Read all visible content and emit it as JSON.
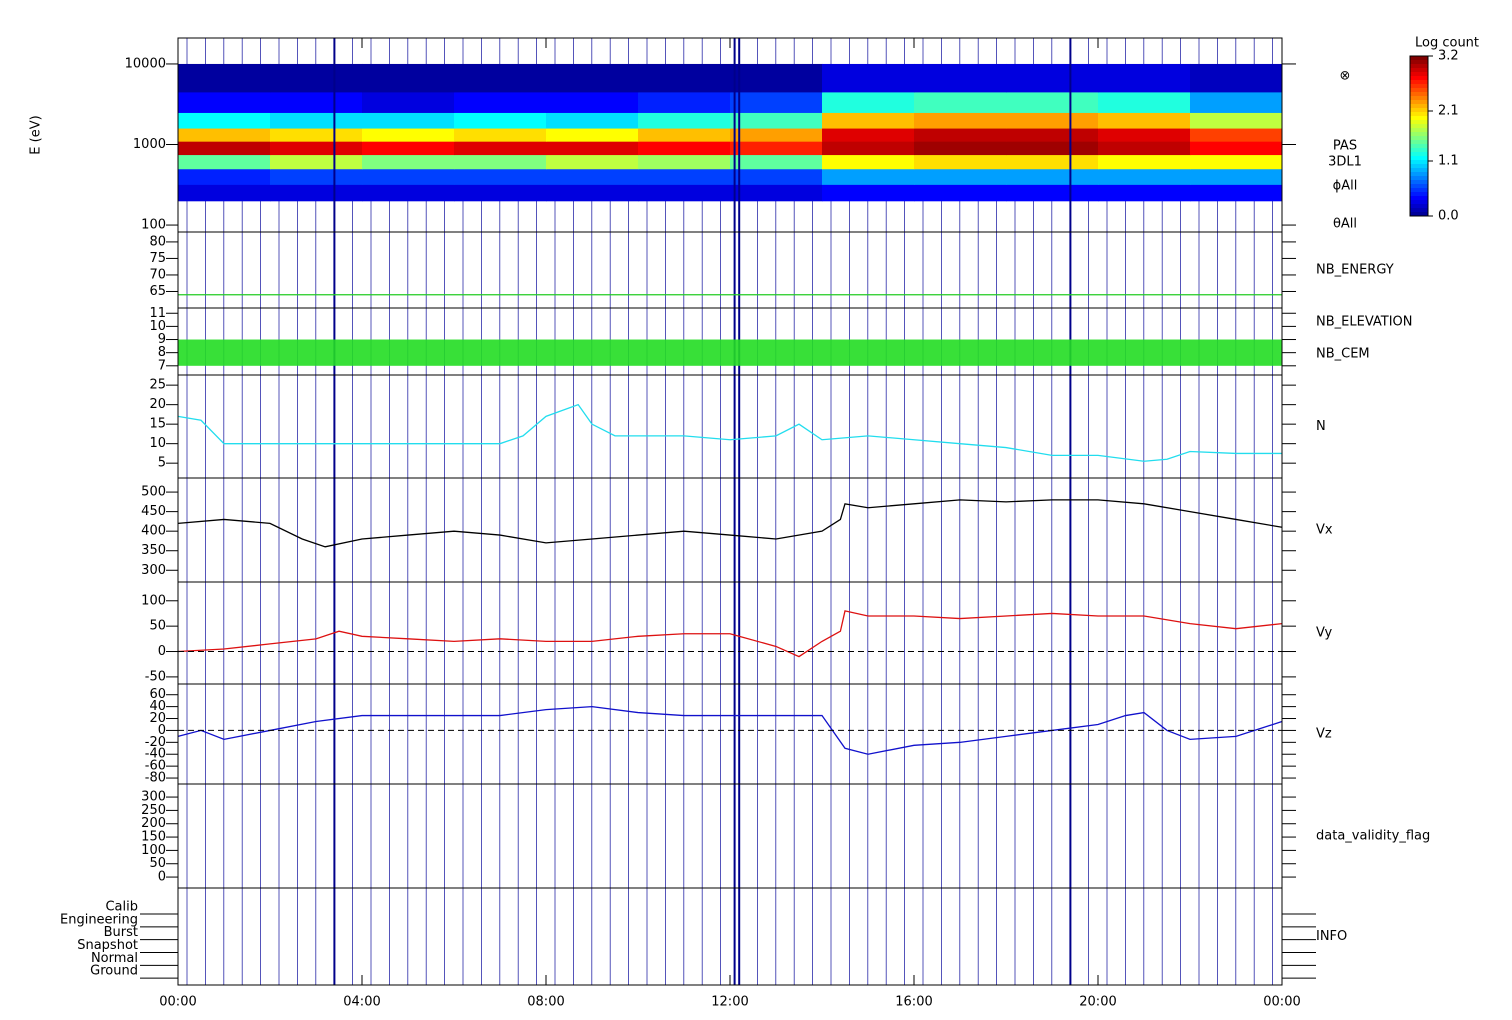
{
  "chart_data": [
    {
      "type": "heatmap",
      "ylabel": "E (eV)",
      "log": true,
      "ylim": [
        82,
        21000
      ],
      "yticks": [
        100,
        1000,
        10000
      ],
      "x_bins": [
        0,
        2,
        4,
        6,
        8,
        10,
        12,
        14,
        16,
        18,
        20,
        22,
        24
      ],
      "y_bins": [
        200,
        320,
        500,
        750,
        1100,
        1600,
        2500,
        4500,
        10000
      ],
      "values": [
        [
          0.3,
          0.3,
          0.3,
          0.3,
          0.3,
          0.3,
          0.3,
          0.4,
          0.4,
          0.4,
          0.4,
          0.4
        ],
        [
          0.5,
          0.6,
          0.6,
          0.6,
          0.6,
          0.6,
          0.6,
          0.9,
          0.9,
          0.9,
          0.9,
          0.9
        ],
        [
          1.5,
          1.8,
          1.6,
          1.6,
          1.8,
          1.7,
          1.5,
          2.0,
          2.1,
          2.1,
          2.0,
          2.0
        ],
        [
          3.0,
          2.9,
          2.8,
          2.9,
          2.9,
          2.8,
          2.7,
          3.0,
          3.1,
          3.1,
          3.0,
          2.8
        ],
        [
          2.2,
          2.1,
          2.0,
          2.1,
          2.0,
          2.2,
          2.3,
          2.9,
          3.0,
          3.0,
          2.9,
          2.6
        ],
        [
          1.2,
          1.1,
          1.1,
          1.2,
          1.1,
          1.3,
          1.4,
          2.2,
          2.3,
          2.3,
          2.2,
          1.8
        ],
        [
          0.4,
          0.4,
          0.3,
          0.4,
          0.4,
          0.5,
          0.6,
          1.3,
          1.4,
          1.4,
          1.3,
          0.9
        ],
        [
          0.1,
          0.1,
          0.1,
          0.1,
          0.1,
          0.1,
          0.1,
          0.3,
          0.3,
          0.3,
          0.3,
          0.2
        ]
      ],
      "colorbar": {
        "title": "Log count",
        "lim": [
          0,
          3.2
        ],
        "ticks": [
          {
            "value": 0,
            "label": "0.0"
          },
          1.1,
          2.1,
          3.2
        ]
      },
      "symbol": "⊗",
      "labels": [
        "PAS",
        "3DL1",
        "ϕAll",
        "θAll"
      ],
      "markers": [
        3.4,
        12.1,
        12.2,
        19.4
      ],
      "marker_color": "#00008b"
    },
    {
      "type": "line",
      "ylim": [
        60,
        83
      ],
      "yticks": [
        65,
        70,
        75,
        80
      ],
      "series": [
        {
          "name": "NB_ENERGY",
          "color": "#22cc22",
          "x": [
            0,
            24
          ],
          "values": [
            64,
            64
          ]
        }
      ]
    },
    {
      "type": "band",
      "ylim": [
        6.3,
        11.4
      ],
      "yticks": [
        7,
        8,
        9,
        10,
        11
      ],
      "series": [
        {
          "name": "NB_ELEVATION",
          "color": "#22dd22",
          "range": [
            7,
            9
          ]
        },
        {
          "name": "NB_CEM",
          "color": "#1a1aaa"
        }
      ]
    },
    {
      "type": "line",
      "ylim": [
        1.2,
        27.6
      ],
      "yticks": [
        5,
        10,
        15,
        20,
        25
      ],
      "series": [
        {
          "name": "N",
          "color": "#22ddee",
          "x": [
            0,
            0.5,
            1,
            2,
            3,
            4,
            5,
            6,
            7,
            7.5,
            8,
            8.7,
            9,
            9.5,
            10,
            11,
            12,
            13,
            13.5,
            14,
            15,
            16,
            17,
            18,
            19,
            20,
            21,
            21.5,
            22,
            23,
            24
          ],
          "values": [
            17,
            16,
            10,
            10,
            10,
            10,
            10,
            10,
            10,
            12,
            17,
            20,
            15,
            12,
            12,
            12,
            11,
            12,
            15,
            11,
            12,
            11,
            10,
            9,
            7,
            7,
            5.5,
            6,
            8,
            7.5,
            7.5
          ]
        }
      ]
    },
    {
      "type": "line",
      "ylim": [
        270,
        536
      ],
      "yticks": [
        300,
        350,
        400,
        450,
        500
      ],
      "series": [
        {
          "name": "Vx",
          "color": "#000000",
          "x": [
            0,
            1,
            2,
            2.7,
            3.2,
            4,
            5,
            6,
            7,
            8,
            9,
            10,
            11,
            12,
            13,
            14,
            14.4,
            14.5,
            15,
            16,
            17,
            18,
            19,
            20,
            21,
            22,
            23,
            24
          ],
          "values": [
            420,
            430,
            420,
            380,
            360,
            380,
            390,
            400,
            390,
            370,
            380,
            390,
            400,
            390,
            380,
            400,
            430,
            470,
            460,
            470,
            480,
            475,
            480,
            480,
            470,
            450,
            430,
            410
          ]
        }
      ]
    },
    {
      "type": "line",
      "ylim": [
        -64,
        137
      ],
      "yticks": [
        -50,
        0,
        50,
        100
      ],
      "dashed_line": 0,
      "series": [
        {
          "name": "Vy",
          "color": "#dd1111",
          "x": [
            0,
            1,
            2,
            3,
            3.5,
            4,
            5,
            6,
            7,
            8,
            9,
            10,
            11,
            12,
            13,
            13.5,
            14,
            14.4,
            14.5,
            15,
            16,
            17,
            18,
            19,
            20,
            21,
            22,
            23,
            24
          ],
          "values": [
            0,
            5,
            15,
            25,
            40,
            30,
            25,
            20,
            25,
            20,
            20,
            30,
            35,
            35,
            10,
            -10,
            20,
            40,
            80,
            70,
            70,
            65,
            70,
            75,
            70,
            70,
            55,
            45,
            55
          ]
        }
      ]
    },
    {
      "type": "line",
      "ylim": [
        -90,
        78
      ],
      "yticks": [
        -80,
        -60,
        -40,
        -20,
        0,
        20,
        40,
        60
      ],
      "dashed_line": 0,
      "series": [
        {
          "name": "Vz",
          "color": "#1111cc",
          "x": [
            0,
            0.5,
            1,
            2,
            3,
            4,
            5,
            6,
            7,
            8,
            9,
            10,
            11,
            12,
            13,
            14,
            14.5,
            15,
            16,
            17,
            18,
            19,
            20,
            20.6,
            21,
            21.5,
            22,
            23,
            24
          ],
          "values": [
            -10,
            0,
            -15,
            0,
            15,
            25,
            25,
            25,
            25,
            35,
            40,
            30,
            25,
            25,
            25,
            25,
            -30,
            -40,
            -25,
            -20,
            -10,
            0,
            10,
            25,
            30,
            0,
            -15,
            -10,
            15
          ]
        }
      ]
    },
    {
      "type": "line",
      "ylim": [
        -41,
        349
      ],
      "yticks": [
        0,
        50,
        100,
        150,
        200,
        250,
        300
      ],
      "series": [
        {
          "name": "data_validity_flag",
          "color": "#000000"
        }
      ]
    },
    {
      "type": "categorical",
      "categories": [
        "Calib",
        "Engineering",
        "Burst",
        "Snapshot",
        "Normal",
        "Ground"
      ],
      "series": [
        {
          "name": "INFO",
          "color": "#000000"
        }
      ],
      "xlim": [
        0,
        24
      ],
      "xticks": [
        {
          "value": 0,
          "label": "00:00"
        },
        {
          "value": 4,
          "label": "04:00"
        },
        {
          "value": 8,
          "label": "08:00"
        },
        {
          "value": 12,
          "label": "12:00"
        },
        {
          "value": 16,
          "label": "16:00"
        },
        {
          "value": 20,
          "label": "20:00"
        },
        {
          "value": 24,
          "label": "00:00"
        }
      ]
    }
  ]
}
